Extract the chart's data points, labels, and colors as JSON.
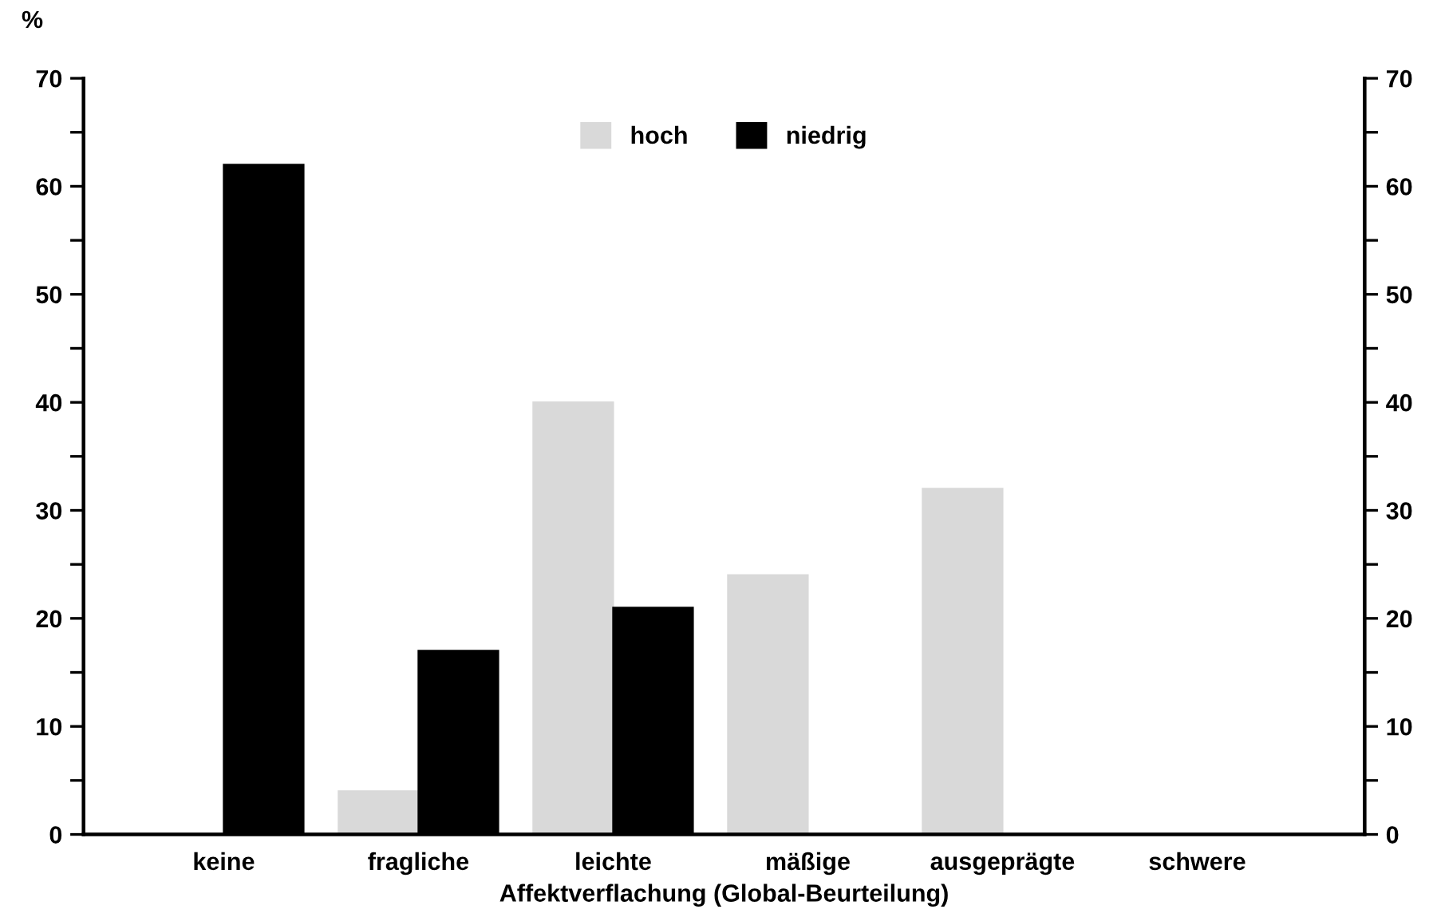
{
  "chart_data": {
    "type": "bar",
    "ylabel": "%",
    "xlabel": "Affektverflachung (Global-Beurteilung)",
    "categories": [
      "keine",
      "fragliche",
      "leichte",
      "mäßige",
      "ausgeprägte",
      "schwere"
    ],
    "series": [
      {
        "name": "hoch",
        "color": "#d9d9d9",
        "values": [
          0,
          4,
          40,
          24,
          32,
          0
        ]
      },
      {
        "name": "niedrig",
        "color": "#000000",
        "values": [
          62,
          17,
          21,
          0,
          0,
          0
        ]
      }
    ],
    "ylim": [
      0,
      70
    ],
    "yticks": [
      0,
      {
        "value": 5,
        "label": null
      },
      10,
      {
        "value": 15,
        "label": null
      },
      20,
      {
        "value": 25,
        "label": null
      },
      30,
      {
        "value": 35,
        "label": null
      },
      40,
      {
        "value": 45,
        "label": null
      },
      50,
      {
        "value": 55,
        "label": null
      },
      60,
      {
        "value": 65,
        "label": null
      },
      70
    ],
    "y2lim": [
      0,
      70
    ],
    "y2ticks": [
      0,
      {
        "value": 5,
        "label": null
      },
      10,
      {
        "value": 15,
        "label": null
      },
      20,
      {
        "value": 25,
        "label": null
      },
      30,
      {
        "value": 35,
        "label": null
      },
      40,
      {
        "value": 45,
        "label": null
      },
      50,
      {
        "value": 55,
        "label": null
      },
      60,
      {
        "value": 65,
        "label": null
      },
      70
    ],
    "legend": "top",
    "grid": false
  }
}
